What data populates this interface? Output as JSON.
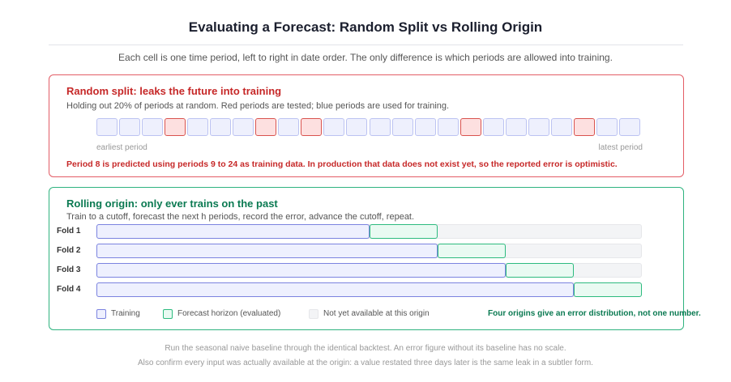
{
  "header": {
    "title": "Evaluating a Forecast: Random Split vs Rolling Origin",
    "subtitle": "Each cell is one time period, left to right in date order. The only difference is which periods are allowed into training."
  },
  "random_split": {
    "heading": "Random split: leaks the future into training",
    "description": "Holding out 20% of periods at random. Red periods are tested; blue periods are used for training.",
    "cells": [
      "train",
      "train",
      "train",
      "test",
      "train",
      "train",
      "train",
      "test",
      "train",
      "test",
      "train",
      "train",
      "train",
      "train",
      "train",
      "train",
      "test",
      "train",
      "train",
      "train",
      "train",
      "test",
      "train",
      "train"
    ],
    "start_label": "earliest period",
    "end_label": "latest period",
    "note": "Period 8 is predicted using periods 9 to 24 as training data. In production that data does not exist yet, so the reported error is optimistic."
  },
  "rolling_origin": {
    "heading": "Rolling origin: only ever trains on the past",
    "description": "Train to a cutoff, forecast the next h periods, record the error, advance the cutoff, repeat.",
    "folds": [
      {
        "label": "Fold 1",
        "train": 12,
        "horizon": 3
      },
      {
        "label": "Fold 2",
        "train": 15,
        "horizon": 3
      },
      {
        "label": "Fold 3",
        "train": 18,
        "horizon": 3
      },
      {
        "label": "Fold 4",
        "train": 21,
        "horizon": 3
      }
    ],
    "legend": [
      "Training",
      "Forecast horizon (evaluated)",
      "Not yet available at this origin"
    ],
    "note": "Four origins give an error distribution, not one number."
  },
  "footer": [
    "Run the seasonal naive baseline through the identical backtest. An error figure without its baseline has no scale.",
    "Also confirm every input was actually available at the origin: a value restated three days later is the same leak in a subtler form."
  ]
}
